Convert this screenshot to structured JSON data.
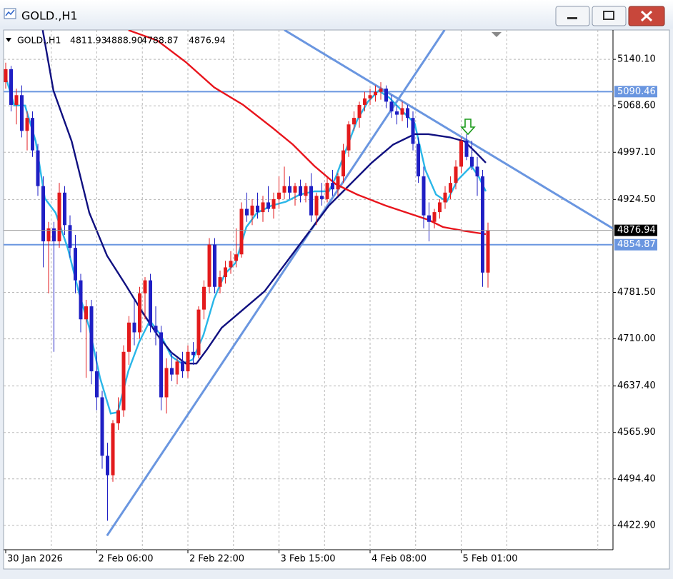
{
  "window": {
    "title": "GOLD.,H1"
  },
  "chart_data": {
    "type": "candlestick",
    "title": "GOLD.,H1",
    "last_labels": [
      "4811.93",
      "4888.90",
      "4788.87",
      "4876.94"
    ],
    "x": [
      "30 Jan 2026",
      null,
      null,
      null,
      null,
      null,
      null,
      null,
      null,
      null,
      null,
      null,
      null,
      null,
      null,
      null,
      null,
      "2 Feb 06:00",
      null,
      null,
      null,
      null,
      null,
      null,
      null,
      null,
      null,
      null,
      null,
      null,
      null,
      null,
      null,
      null,
      "2 Feb 22:00",
      null,
      null,
      null,
      null,
      null,
      null,
      null,
      null,
      null,
      null,
      null,
      null,
      null,
      null,
      null,
      null,
      "3 Feb 15:00",
      null,
      null,
      null,
      null,
      null,
      null,
      null,
      null,
      null,
      null,
      null,
      null,
      null,
      null,
      null,
      null,
      "4 Feb 08:00",
      null,
      null,
      null,
      null,
      null,
      null,
      null,
      null,
      null,
      null,
      null,
      null,
      null,
      null,
      null,
      null,
      "5 Feb 01:00",
      null,
      null,
      null,
      null,
      null
    ],
    "candles": [
      [
        5105,
        5135,
        5095,
        5125
      ],
      [
        5125,
        5130,
        5060,
        5070
      ],
      [
        5070,
        5095,
        5040,
        5085
      ],
      [
        5085,
        5100,
        5020,
        5030
      ],
      [
        5030,
        5060,
        5000,
        5050
      ],
      [
        5050,
        5060,
        4990,
        5000
      ],
      [
        5000,
        5010,
        4930,
        4945
      ],
      [
        4945,
        4960,
        4820,
        4860
      ],
      [
        4860,
        4890,
        4780,
        4880
      ],
      [
        4880,
        4890,
        4690,
        4860
      ],
      [
        4860,
        4950,
        4850,
        4935
      ],
      [
        4935,
        4945,
        4870,
        4885
      ],
      [
        4885,
        4900,
        4835,
        4850
      ],
      [
        4850,
        4870,
        4780,
        4800
      ],
      [
        4800,
        4810,
        4720,
        4740
      ],
      [
        4740,
        4770,
        4650,
        4760
      ],
      [
        4760,
        4770,
        4640,
        4660
      ],
      [
        4660,
        4690,
        4600,
        4620
      ],
      [
        4620,
        4630,
        4510,
        4530
      ],
      [
        4530,
        4550,
        4430,
        4500
      ],
      [
        4500,
        4585,
        4490,
        4580
      ],
      [
        4580,
        4620,
        4570,
        4600
      ],
      [
        4600,
        4700,
        4590,
        4690
      ],
      [
        4690,
        4745,
        4670,
        4735
      ],
      [
        4735,
        4770,
        4700,
        4720
      ],
      [
        4720,
        4790,
        4710,
        4780
      ],
      [
        4780,
        4805,
        4740,
        4800
      ],
      [
        4800,
        4810,
        4720,
        4730
      ],
      [
        4730,
        4760,
        4700,
        4720
      ],
      [
        4720,
        4730,
        4600,
        4620
      ],
      [
        4620,
        4680,
        4595,
        4665
      ],
      [
        4665,
        4690,
        4645,
        4655
      ],
      [
        4655,
        4680,
        4640,
        4675
      ],
      [
        4675,
        4690,
        4650,
        4660
      ],
      [
        4660,
        4700,
        4650,
        4690
      ],
      [
        4690,
        4705,
        4670,
        4685
      ],
      [
        4685,
        4760,
        4680,
        4755
      ],
      [
        4755,
        4800,
        4740,
        4790
      ],
      [
        4790,
        4865,
        4780,
        4855
      ],
      [
        4855,
        4865,
        4780,
        4790
      ],
      [
        4790,
        4815,
        4780,
        4805
      ],
      [
        4805,
        4830,
        4795,
        4820
      ],
      [
        4820,
        4845,
        4810,
        4830
      ],
      [
        4830,
        4880,
        4820,
        4840
      ],
      [
        4840,
        4920,
        4835,
        4910
      ],
      [
        4910,
        4935,
        4890,
        4900
      ],
      [
        4900,
        4925,
        4885,
        4915
      ],
      [
        4915,
        4935,
        4895,
        4905
      ],
      [
        4905,
        4930,
        4890,
        4920
      ],
      [
        4920,
        4945,
        4905,
        4910
      ],
      [
        4910,
        4935,
        4895,
        4925
      ],
      [
        4925,
        4960,
        4910,
        4935
      ],
      [
        4935,
        4975,
        4925,
        4945
      ],
      [
        4945,
        4960,
        4925,
        4935
      ],
      [
        4935,
        4950,
        4915,
        4945
      ],
      [
        4945,
        4955,
        4920,
        4930
      ],
      [
        4930,
        4950,
        4920,
        4945
      ],
      [
        4945,
        4965,
        4890,
        4900
      ],
      [
        4900,
        4935,
        4885,
        4930
      ],
      [
        4930,
        4950,
        4915,
        4925
      ],
      [
        4925,
        4960,
        4920,
        4950
      ],
      [
        4950,
        4970,
        4930,
        4940
      ],
      [
        4940,
        4965,
        4930,
        4960
      ],
      [
        4960,
        5010,
        4950,
        5000
      ],
      [
        5000,
        5045,
        4990,
        5040
      ],
      [
        5040,
        5060,
        5030,
        5050
      ],
      [
        5050,
        5075,
        5035,
        5070
      ],
      [
        5070,
        5090,
        5060,
        5080
      ],
      [
        5080,
        5095,
        5070,
        5085
      ],
      [
        5085,
        5100,
        5075,
        5090
      ],
      [
        5090,
        5105,
        5078,
        5095
      ],
      [
        5095,
        5100,
        5065,
        5075
      ],
      [
        5075,
        5085,
        5050,
        5060
      ],
      [
        5060,
        5070,
        5040,
        5055
      ],
      [
        5055,
        5075,
        5045,
        5065
      ],
      [
        5065,
        5070,
        5035,
        5050
      ],
      [
        5050,
        5060,
        5000,
        5010
      ],
      [
        5010,
        5020,
        4950,
        4960
      ],
      [
        4960,
        4975,
        4880,
        4900
      ],
      [
        4900,
        4920,
        4860,
        4890
      ],
      [
        4890,
        4910,
        4880,
        4905
      ],
      [
        4905,
        4925,
        4895,
        4920
      ],
      [
        4920,
        4945,
        4910,
        4935
      ],
      [
        4935,
        4960,
        4925,
        4950
      ],
      [
        4950,
        4985,
        4940,
        4975
      ],
      [
        4975,
        5020,
        4965,
        5015
      ],
      [
        5015,
        5025,
        4985,
        4990
      ],
      [
        4990,
        5015,
        4970,
        4975
      ],
      [
        4975,
        4990,
        4930,
        4960
      ],
      [
        4960,
        4970,
        4790,
        4811.93
      ],
      [
        4811.93,
        4888.9,
        4788.87,
        4876.94
      ]
    ],
    "up_color": "#e31a1c",
    "down_color": "#1f1fc4",
    "xlim": [
      -0.4,
      113.33
    ],
    "ylim": [
      4385.4,
      5185.3
    ],
    "yticks": [
      {
        "value": 5140.1,
        "label": "5140.10"
      },
      {
        "value": 5068.6,
        "label": "5068.60"
      },
      {
        "value": 4997.1,
        "label": "4997.10"
      },
      {
        "value": 4924.5,
        "label": "4924.50"
      },
      {
        "value": 4781.5,
        "label": "4781.50"
      },
      {
        "value": 4710,
        "label": "4710.00"
      },
      {
        "value": 4637.4,
        "label": "4637.40"
      },
      {
        "value": 4565.9,
        "label": "4565.90"
      },
      {
        "value": 4494.4,
        "label": "4494.40"
      },
      {
        "value": 4422.9,
        "label": "4422.90"
      }
    ],
    "grid": true,
    "series": [
      {
        "color": "#29b6e8",
        "x": [
          0,
          1.6,
          3.6,
          5.6,
          7.3,
          9.3,
          11.6,
          13.6,
          15.6,
          17.6,
          19.6,
          20.9,
          22.9,
          24.9,
          26.9,
          28.9,
          30.9,
          32.9,
          34.9,
          36.9,
          38.9,
          40.9,
          42.9,
          44.9,
          46.9,
          49.6,
          52.3,
          54.9,
          57.6,
          60.3,
          61.6,
          63.6,
          65.6,
          67.6,
          69.6,
          71.6,
          74.3,
          76.3,
          78.3,
          80.3,
          82.3,
          84.3,
          86.9,
          88.3,
          89.6
        ],
        "values": [
          5113,
          5069,
          5069,
          5014,
          4926,
          4904,
          4849,
          4783,
          4727,
          4650,
          4595,
          4597,
          4661,
          4705,
          4738,
          4716,
          4683,
          4672,
          4678,
          4716,
          4772,
          4810,
          4827,
          4882,
          4904,
          4915,
          4921,
          4932,
          4937,
          4937,
          4959,
          5003,
          5047,
          5075,
          5092,
          5081,
          5058,
          5042,
          4970,
          4932,
          4921,
          4954,
          4976,
          4959,
          4937
        ]
      },
      {
        "color": "#101080",
        "x": [
          6.9,
          8.9,
          12.3,
          15.6,
          18.9,
          22.3,
          25.6,
          28.3,
          30.9,
          33.6,
          35.6,
          37.6,
          40.3,
          44.3,
          48.3,
          52.3,
          56.3,
          60.3,
          64.3,
          68.3,
          72.3,
          76.3,
          78.9,
          82.9,
          85.6,
          87.6,
          89.6
        ],
        "values": [
          5185,
          5092,
          5014,
          4904,
          4838,
          4794,
          4750,
          4716,
          4689,
          4672,
          4672,
          4694,
          4727,
          4755,
          4783,
          4827,
          4871,
          4915,
          4948,
          4981,
          5009,
          5025,
          5025,
          5020,
          5014,
          4998,
          4981
        ]
      },
      {
        "color": "#e8141c",
        "x": [
          22.9,
          28.3,
          33.6,
          38.9,
          44.3,
          49.6,
          53.6,
          57.6,
          61.6,
          65.6,
          70.9,
          74.9,
          78.9,
          81.6,
          85.6,
          89.6
        ],
        "values": [
          5185,
          5169,
          5136,
          5097,
          5070,
          5036,
          5009,
          4976,
          4948,
          4932,
          4915,
          4904,
          4893,
          4882,
          4876,
          4871
        ]
      }
    ],
    "levels": [
      {
        "value": 5090.46,
        "color": "#6a96e0"
      },
      {
        "value": 4854.87,
        "color": "#6a96e0"
      }
    ],
    "trendlines": [
      {
        "color": "#6a96e0",
        "x": [
          18.9,
          81.9
        ],
        "y": [
          4407,
          5185.3
        ]
      },
      {
        "color": "#6a96e0",
        "x": [
          52,
          113.33
        ],
        "y": [
          5185.3,
          4879.7
        ]
      }
    ]
  }
}
